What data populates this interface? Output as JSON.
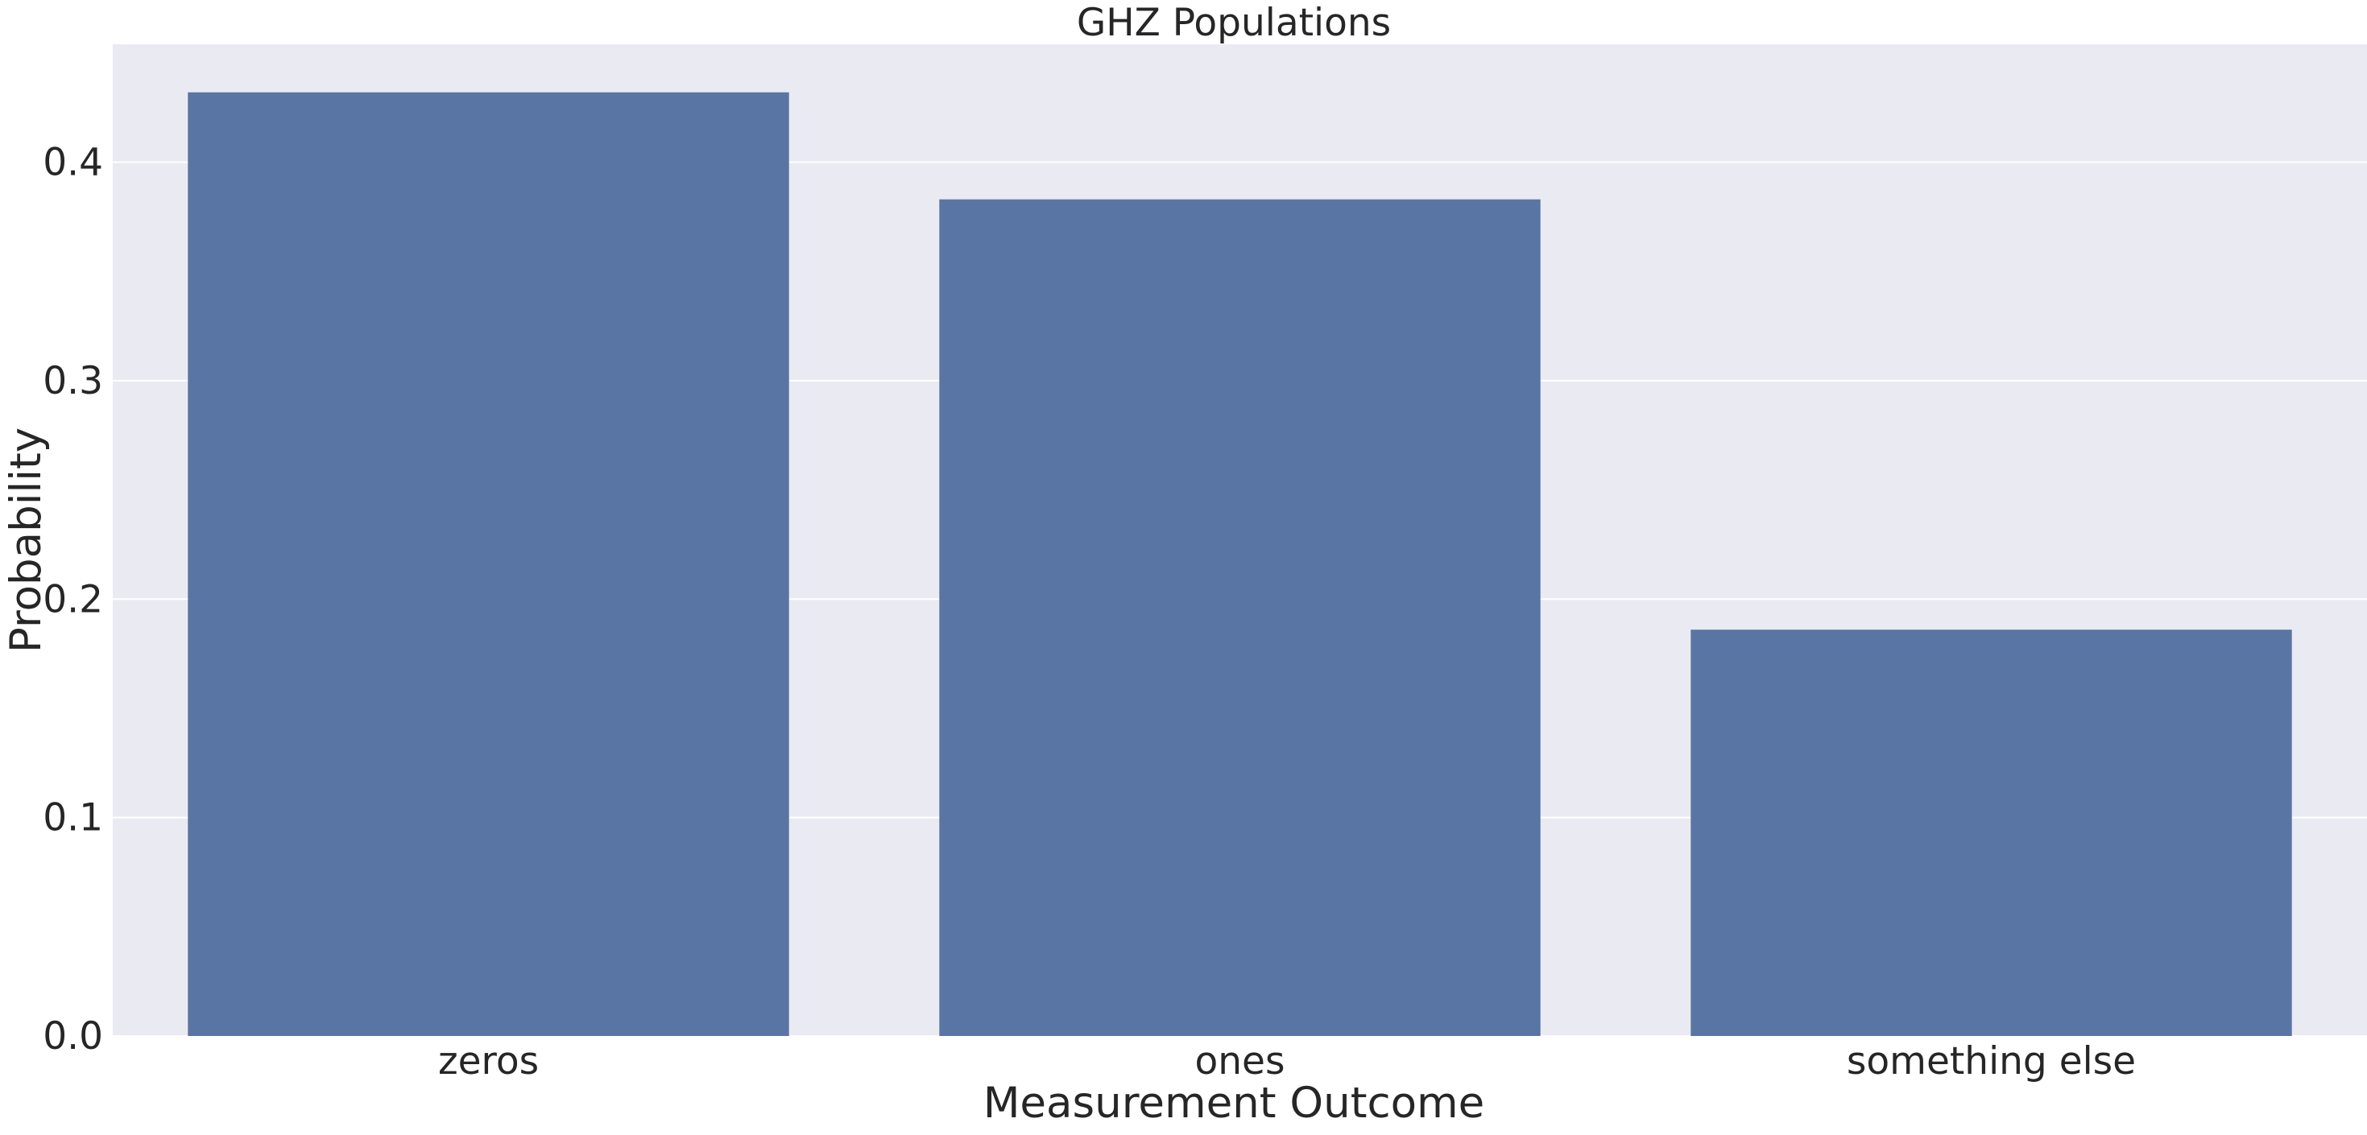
{
  "chart_data": {
    "type": "bar",
    "title": "GHZ Populations",
    "xlabel": "Measurement Outcome",
    "ylabel": "Probability",
    "categories": [
      "zeros",
      "ones",
      "something else"
    ],
    "values": [
      0.432,
      0.383,
      0.186
    ],
    "ylim": [
      0,
      0.454
    ],
    "yticks": [
      0.0,
      0.1,
      0.2,
      0.3,
      0.4
    ],
    "ytick_labels": [
      "0.0",
      "0.1",
      "0.2",
      "0.3",
      "0.4"
    ],
    "grid": true,
    "legend": "none",
    "colors": {
      "bar": "#5975a4",
      "plot_background": "#eaeaf2",
      "grid": "#ffffff",
      "figure_background": "#ffffff"
    }
  }
}
